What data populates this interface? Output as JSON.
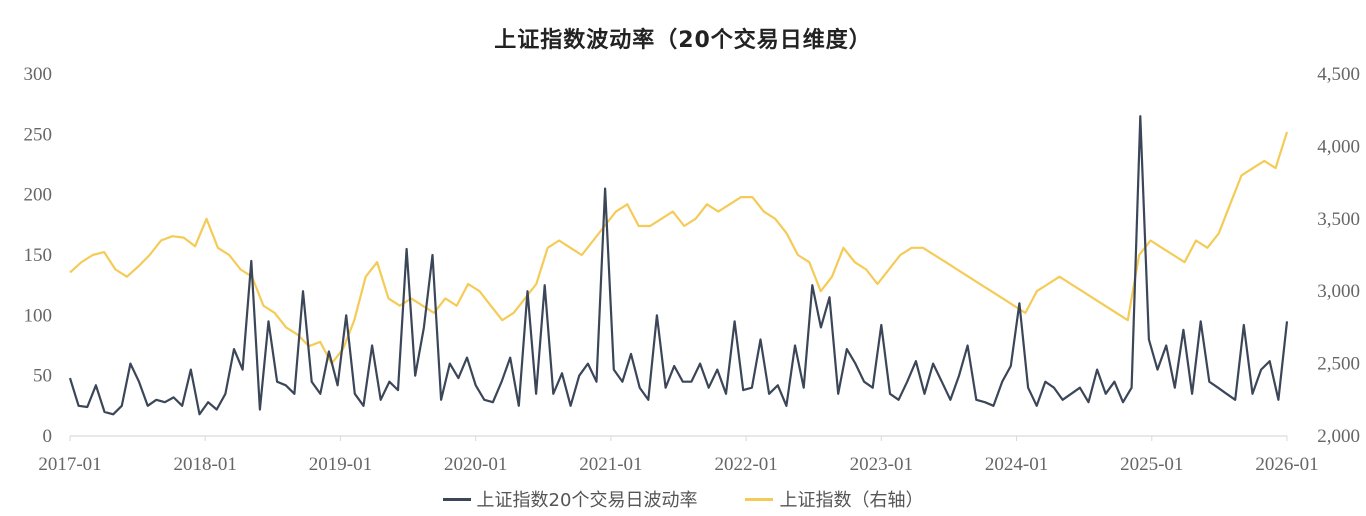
{
  "title": "上证指数波动率（20个交易日维度）",
  "legend": {
    "volatility_label": "上证指数20个交易日波动率",
    "index_label": "上证指数（右轴）"
  },
  "colors": {
    "volatility": "#3b4659",
    "index": "#f5cb57",
    "axis": "#d9d9d9",
    "text": "#666666"
  },
  "chart_data": {
    "type": "line",
    "title": "上证指数波动率（20个交易日维度）",
    "xlabel": "",
    "ylabel": "",
    "y_left": {
      "ticks": [
        0,
        50,
        100,
        150,
        200,
        250,
        300
      ],
      "ylim": [
        0,
        300
      ]
    },
    "y_right": {
      "ticks": [
        "2,000",
        "2,500",
        "3,000",
        "3,500",
        "4,000",
        "4,500"
      ],
      "ylim": [
        2000,
        4500
      ]
    },
    "x_ticks": [
      "2017-01",
      "2018-01",
      "2019-01",
      "2020-01",
      "2021-01",
      "2022-01",
      "2023-01",
      "2024-01",
      "2025-01",
      "2026-01"
    ],
    "grid": false,
    "legend_position": "bottom",
    "x_start": "2017-01",
    "x_end": "2026-01",
    "frequency": "monthly (approximate samples)",
    "series": [
      {
        "name": "上证指数20个交易日波动率",
        "axis": "left",
        "values": [
          48,
          25,
          24,
          42,
          20,
          18,
          25,
          60,
          45,
          25,
          30,
          28,
          32,
          25,
          55,
          18,
          28,
          22,
          35,
          72,
          55,
          145,
          22,
          95,
          45,
          42,
          35,
          120,
          45,
          35,
          70,
          42,
          100,
          35,
          25,
          75,
          30,
          45,
          38,
          155,
          50,
          90,
          150,
          30,
          60,
          48,
          65,
          42,
          30,
          28,
          45,
          65,
          25,
          120,
          35,
          125,
          35,
          52,
          25,
          50,
          60,
          45,
          205,
          55,
          45,
          68,
          40,
          30,
          100,
          40,
          58,
          45,
          45,
          60,
          40,
          55,
          35,
          95,
          38,
          40,
          80,
          35,
          42,
          25,
          75,
          40,
          125,
          90,
          115,
          35,
          72,
          60,
          45,
          40,
          92,
          35,
          30,
          45,
          62,
          35,
          60,
          45,
          30,
          50,
          75,
          30,
          28,
          25,
          45,
          58,
          110,
          40,
          25,
          45,
          40,
          30,
          35,
          40,
          28,
          55,
          35,
          45,
          28,
          40,
          265,
          80,
          55,
          75,
          40,
          88,
          35,
          95,
          45,
          40,
          35,
          30,
          92,
          35,
          55,
          62,
          30,
          95
        ]
      },
      {
        "name": "上证指数（右轴）",
        "axis": "right",
        "values": [
          3130,
          3200,
          3250,
          3270,
          3150,
          3100,
          3170,
          3250,
          3350,
          3380,
          3370,
          3310,
          3500,
          3300,
          3250,
          3150,
          3100,
          2900,
          2850,
          2750,
          2700,
          2620,
          2650,
          2500,
          2600,
          2800,
          3100,
          3200,
          2950,
          2900,
          2950,
          2900,
          2850,
          2950,
          2900,
          3050,
          3000,
          2900,
          2800,
          2850,
          2950,
          3050,
          3300,
          3350,
          3300,
          3250,
          3350,
          3450,
          3550,
          3600,
          3450,
          3450,
          3500,
          3550,
          3450,
          3500,
          3600,
          3550,
          3600,
          3650,
          3650,
          3550,
          3500,
          3400,
          3250,
          3200,
          3000,
          3100,
          3300,
          3200,
          3150,
          3050,
          3150,
          3250,
          3300,
          3300,
          3250,
          3200,
          3150,
          3100,
          3050,
          3000,
          2950,
          2900,
          2850,
          3000,
          3050,
          3100,
          3050,
          3000,
          2950,
          2900,
          2850,
          2800,
          3250,
          3350,
          3300,
          3250,
          3200,
          3350,
          3300,
          3400,
          3600,
          3800,
          3850,
          3900,
          3850,
          4100
        ]
      }
    ]
  }
}
